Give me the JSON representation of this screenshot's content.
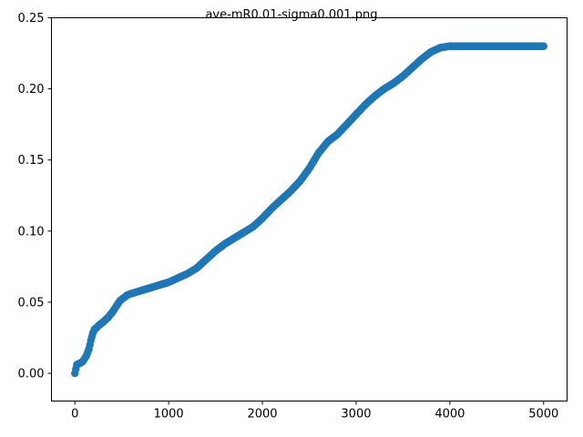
{
  "chart_data": {
    "type": "scatter",
    "title": "ave-mR0.01-sigma0.001.png",
    "xlabel": "",
    "ylabel": "",
    "xlim": [
      -250,
      5250
    ],
    "ylim": [
      -0.0195,
      0.25
    ],
    "x_ticks": [
      0,
      1000,
      2000,
      3000,
      4000,
      5000
    ],
    "y_ticks": [
      0.0,
      0.05,
      0.1,
      0.15,
      0.2,
      0.25
    ],
    "x_tick_labels": [
      "0",
      "1000",
      "2000",
      "3000",
      "4000",
      "5000"
    ],
    "y_tick_labels": [
      "0.00",
      "0.05",
      "0.10",
      "0.15",
      "0.20",
      "0.25"
    ],
    "grid": false,
    "legend": "none",
    "series": [
      {
        "color": "#1f77b4",
        "marker": "circle",
        "x": [
          0,
          20,
          50,
          80,
          100,
          120,
          150,
          170,
          190,
          210,
          230,
          260,
          300,
          350,
          400,
          450,
          480,
          520,
          560,
          600,
          700,
          800,
          900,
          1000,
          1100,
          1200,
          1300,
          1400,
          1500,
          1600,
          1700,
          1800,
          1900,
          2000,
          2100,
          2200,
          2300,
          2400,
          2500,
          2600,
          2700,
          2800,
          2900,
          3000,
          3100,
          3200,
          3300,
          3400,
          3500,
          3600,
          3700,
          3800,
          3900,
          4000,
          4100,
          4200,
          4300,
          4400,
          4500,
          4600,
          4700,
          4800,
          4900,
          5000
        ],
        "y": [
          0.0,
          0.006,
          0.007,
          0.008,
          0.01,
          0.012,
          0.017,
          0.023,
          0.028,
          0.031,
          0.032,
          0.034,
          0.036,
          0.039,
          0.043,
          0.048,
          0.051,
          0.053,
          0.055,
          0.056,
          0.058,
          0.06,
          0.062,
          0.064,
          0.067,
          0.07,
          0.074,
          0.08,
          0.086,
          0.091,
          0.095,
          0.099,
          0.103,
          0.109,
          0.116,
          0.122,
          0.128,
          0.135,
          0.144,
          0.155,
          0.163,
          0.168,
          0.175,
          0.182,
          0.189,
          0.195,
          0.2,
          0.204,
          0.209,
          0.215,
          0.221,
          0.226,
          0.229,
          0.23,
          0.23,
          0.23,
          0.23,
          0.23,
          0.23,
          0.23,
          0.23,
          0.23,
          0.23,
          0.23
        ]
      }
    ]
  }
}
